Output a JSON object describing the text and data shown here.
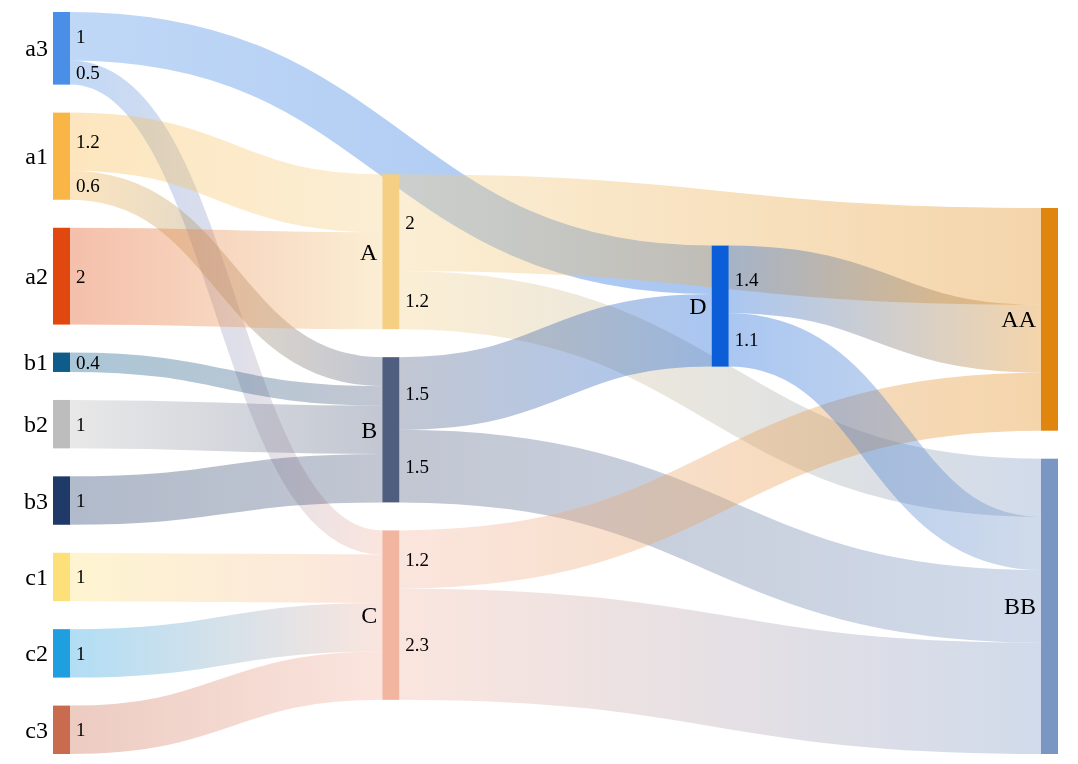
{
  "chart_data": {
    "type": "other",
    "data_labels": true,
    "categories": [
      "a3",
      "a1",
      "a2",
      "b1",
      "b2",
      "b3",
      "c1",
      "c2",
      "c3",
      "A",
      "B",
      "C",
      "D",
      "AA",
      "BB"
    ],
    "colors": [
      "#4a8fe7",
      "#f9b646",
      "#e0480f",
      "#0d5c8a",
      "#bdbdbd",
      "#1f3a68",
      "#fde07a",
      "#1f9fe0",
      "#c96b4e",
      "#f4cf84",
      "#4f5d7e",
      "#f2b5a0",
      "#0b5ed8",
      "#e0860e",
      "#7a97c4"
    ],
    "series": [
      {
        "values": [
          null,
          1.2,
          2,
          null,
          null,
          null,
          null,
          null,
          null,
          null,
          null,
          null,
          null,
          null,
          null
        ]
      },
      {
        "values": [
          null,
          0.6,
          null,
          0.4,
          1,
          1,
          null,
          null,
          null,
          null,
          null,
          null,
          null,
          null,
          null
        ]
      },
      {
        "values": [
          0.5,
          null,
          null,
          null,
          null,
          null,
          1,
          1,
          1,
          null,
          null,
          null,
          null,
          null,
          null
        ]
      },
      {
        "values": [
          1,
          null,
          null,
          null,
          null,
          null,
          null,
          null,
          null,
          null,
          1.5,
          null,
          null,
          null,
          null
        ]
      },
      {
        "values": [
          null,
          null,
          null,
          null,
          null,
          null,
          null,
          null,
          null,
          2,
          null,
          1.2,
          1.4,
          null,
          null
        ]
      },
      {
        "values": [
          null,
          null,
          null,
          null,
          null,
          null,
          null,
          null,
          null,
          1.2,
          1.5,
          2.3,
          1.1,
          null,
          null
        ]
      }
    ]
  }
}
